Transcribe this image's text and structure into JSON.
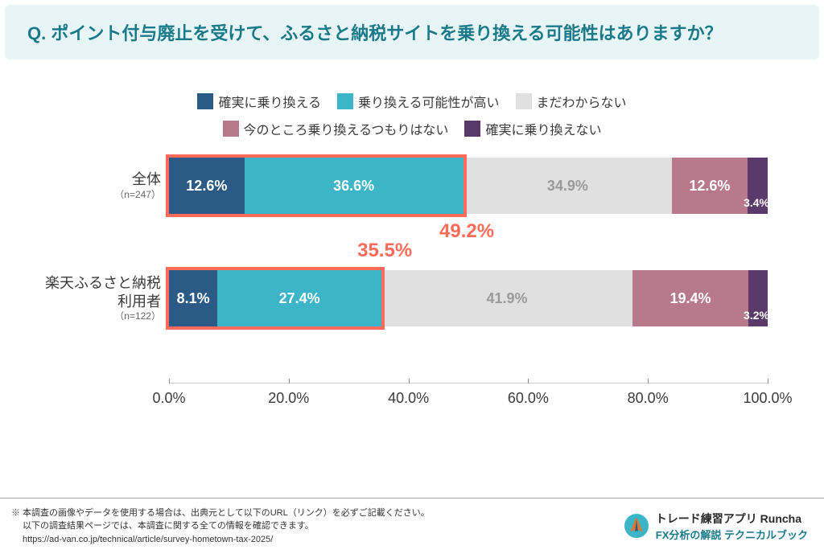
{
  "header": {
    "title": "Q. ポイント付与廃止を受けて、ふるさと納税サイトを乗り換える可能性はありますか？"
  },
  "legend": {
    "items": [
      {
        "label": "確実に乗り換える",
        "color": "#2a5a85"
      },
      {
        "label": "乗り換える可能性が高い",
        "color": "#3cb5c9"
      },
      {
        "label": "まだわからない",
        "color": "#e0e0e0"
      },
      {
        "label": "今のところ乗り換えるつもりはない",
        "color": "#b87a8a"
      },
      {
        "label": "確実に乗り換えない",
        "color": "#5a3a6a"
      }
    ]
  },
  "chart": {
    "type": "stacked-bar-horizontal",
    "xlim": [
      0,
      100
    ],
    "xtick_step": 20,
    "xtick_labels": [
      "0.0%",
      "20.0%",
      "40.0%",
      "60.0%",
      "80.0%",
      "100.0%"
    ],
    "highlight_color": "#ff6b5b",
    "label_text_light": "#ffffff",
    "label_text_dark": "#9a9a9a",
    "rows": [
      {
        "label": "全体",
        "sub": "（n=247）",
        "segments": [
          {
            "value": 12.6,
            "label": "12.6%",
            "color": "#2a5a85",
            "text": "#ffffff"
          },
          {
            "value": 36.6,
            "label": "36.6%",
            "color": "#3cb5c9",
            "text": "#ffffff"
          },
          {
            "value": 34.9,
            "label": "34.9%",
            "color": "#e0e0e0",
            "text": "#9a9a9a"
          },
          {
            "value": 12.6,
            "label": "12.6%",
            "color": "#b87a8a",
            "text": "#ffffff"
          },
          {
            "value": 3.4,
            "label": "3.4%",
            "color": "#5a3a6a",
            "text": "#ffffff",
            "small": true
          }
        ],
        "highlight_pct": 49.2,
        "callout": "49.2%",
        "callout_pos": "below-right"
      },
      {
        "label": "楽天ふるさと納税\n利用者",
        "sub": "（n=122）",
        "segments": [
          {
            "value": 8.1,
            "label": "8.1%",
            "color": "#2a5a85",
            "text": "#ffffff"
          },
          {
            "value": 27.4,
            "label": "27.4%",
            "color": "#3cb5c9",
            "text": "#ffffff"
          },
          {
            "value": 41.9,
            "label": "41.9%",
            "color": "#e0e0e0",
            "text": "#9a9a9a"
          },
          {
            "value": 19.4,
            "label": "19.4%",
            "color": "#b87a8a",
            "text": "#ffffff"
          },
          {
            "value": 3.2,
            "label": "3.2%",
            "color": "#5a3a6a",
            "text": "#ffffff",
            "small": true
          }
        ],
        "highlight_pct": 35.5,
        "callout": "35.5%",
        "callout_pos": "above-right"
      }
    ]
  },
  "footer": {
    "note1": "※ 本調査の画像やデータを使用する場合は、出典元として以下のURL（リンク）を必ずご記載ください。",
    "note2": "　 以下の調査結果ページでは、本調査に関する全ての情報を確認できます。",
    "url": "　 https://ad-van.co.jp/technical/article/survey-hometown-tax-2025/",
    "brand1": "トレード練習アプリ  Runcha",
    "brand2": "FX分析の解説  テクニカルブック"
  }
}
